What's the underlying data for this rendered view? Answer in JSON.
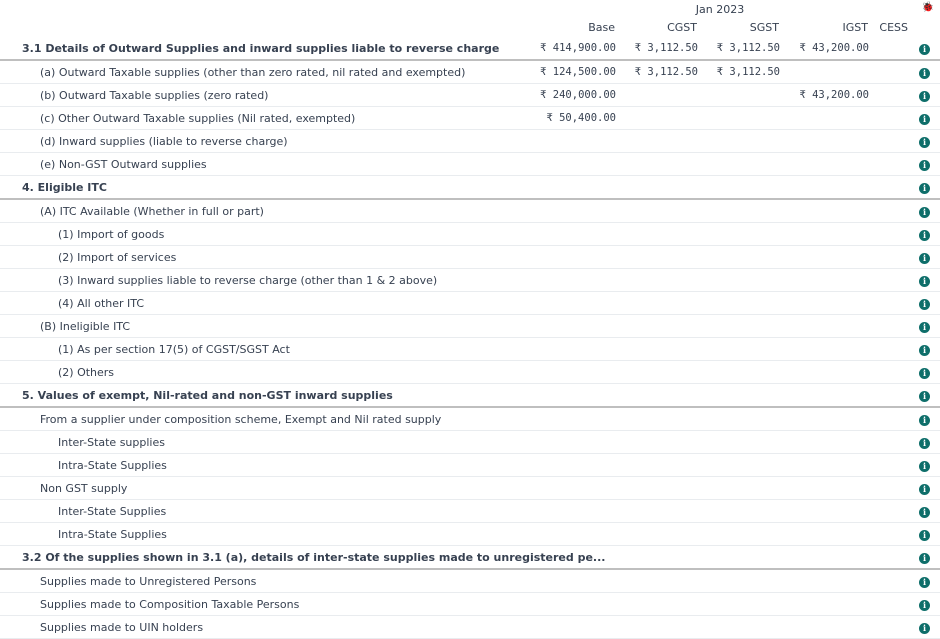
{
  "header": {
    "period": "Jan 2023",
    "columns": [
      "Base",
      "CGST",
      "SGST",
      "IGST",
      "CESS"
    ],
    "debug_icon": "bug-icon"
  },
  "info_icon": "info-circle-icon",
  "accent_color": "#0e6e6a",
  "rows": [
    {
      "label": "3.1 Details of Outward Supplies and inward supplies liable to reverse charge",
      "level": 0,
      "section": true,
      "values": [
        "₹ 414,900.00",
        "₹ 3,112.50",
        "₹ 3,112.50",
        "₹ 43,200.00",
        ""
      ]
    },
    {
      "label": "(a) Outward Taxable supplies (other than zero rated, nil rated and exempted)",
      "level": 1,
      "values": [
        "₹ 124,500.00",
        "₹ 3,112.50",
        "₹ 3,112.50",
        "",
        ""
      ]
    },
    {
      "label": "(b) Outward Taxable supplies (zero rated)",
      "level": 1,
      "values": [
        "₹ 240,000.00",
        "",
        "",
        "₹ 43,200.00",
        ""
      ]
    },
    {
      "label": "(c) Other Outward Taxable supplies (Nil rated, exempted)",
      "level": 1,
      "values": [
        "₹ 50,400.00",
        "",
        "",
        "",
        ""
      ]
    },
    {
      "label": "(d) Inward supplies (liable to reverse charge)",
      "level": 1,
      "values": [
        "",
        "",
        "",
        "",
        ""
      ]
    },
    {
      "label": "(e) Non-GST Outward supplies",
      "level": 1,
      "values": [
        "",
        "",
        "",
        "",
        ""
      ]
    },
    {
      "label": "4. Eligible ITC",
      "level": 0,
      "section": true,
      "values": [
        "",
        "",
        "",
        "",
        ""
      ]
    },
    {
      "label": "(A) ITC Available (Whether in full or part)",
      "level": 1,
      "values": [
        "",
        "",
        "",
        "",
        ""
      ]
    },
    {
      "label": "(1) Import of goods",
      "level": 2,
      "values": [
        "",
        "",
        "",
        "",
        ""
      ]
    },
    {
      "label": "(2) Import of services",
      "level": 2,
      "values": [
        "",
        "",
        "",
        "",
        ""
      ]
    },
    {
      "label": "(3) Inward supplies liable to reverse charge (other than 1 & 2 above)",
      "level": 2,
      "values": [
        "",
        "",
        "",
        "",
        ""
      ]
    },
    {
      "label": "(4) All other ITC",
      "level": 2,
      "values": [
        "",
        "",
        "",
        "",
        ""
      ]
    },
    {
      "label": "(B) Ineligible ITC",
      "level": 1,
      "values": [
        "",
        "",
        "",
        "",
        ""
      ]
    },
    {
      "label": "(1) As per section 17(5) of CGST/SGST Act",
      "level": 2,
      "values": [
        "",
        "",
        "",
        "",
        ""
      ]
    },
    {
      "label": "(2) Others",
      "level": 2,
      "values": [
        "",
        "",
        "",
        "",
        ""
      ]
    },
    {
      "label": "5. Values of exempt, Nil-rated and non-GST inward supplies",
      "level": 0,
      "section": true,
      "values": [
        "",
        "",
        "",
        "",
        ""
      ]
    },
    {
      "label": "From a supplier under composition scheme, Exempt and Nil rated supply",
      "level": 1,
      "values": [
        "",
        "",
        "",
        "",
        ""
      ]
    },
    {
      "label": "Inter-State supplies",
      "level": 2,
      "values": [
        "",
        "",
        "",
        "",
        ""
      ]
    },
    {
      "label": "Intra-State Supplies",
      "level": 2,
      "values": [
        "",
        "",
        "",
        "",
        ""
      ]
    },
    {
      "label": "Non GST supply",
      "level": 1,
      "values": [
        "",
        "",
        "",
        "",
        ""
      ]
    },
    {
      "label": "Inter-State Supplies",
      "level": 2,
      "values": [
        "",
        "",
        "",
        "",
        ""
      ]
    },
    {
      "label": "Intra-State Supplies",
      "level": 2,
      "values": [
        "",
        "",
        "",
        "",
        ""
      ]
    },
    {
      "label": "3.2 Of the supplies shown in 3.1 (a), details of inter-state supplies made to unregistered pe...",
      "level": 0,
      "section": true,
      "values": [
        "",
        "",
        "",
        "",
        ""
      ]
    },
    {
      "label": "Supplies made to Unregistered Persons",
      "level": 1,
      "values": [
        "",
        "",
        "",
        "",
        ""
      ]
    },
    {
      "label": "Supplies made to Composition Taxable Persons",
      "level": 1,
      "values": [
        "",
        "",
        "",
        "",
        ""
      ]
    },
    {
      "label": "Supplies made to UIN holders",
      "level": 1,
      "values": [
        "",
        "",
        "",
        "",
        ""
      ]
    }
  ]
}
